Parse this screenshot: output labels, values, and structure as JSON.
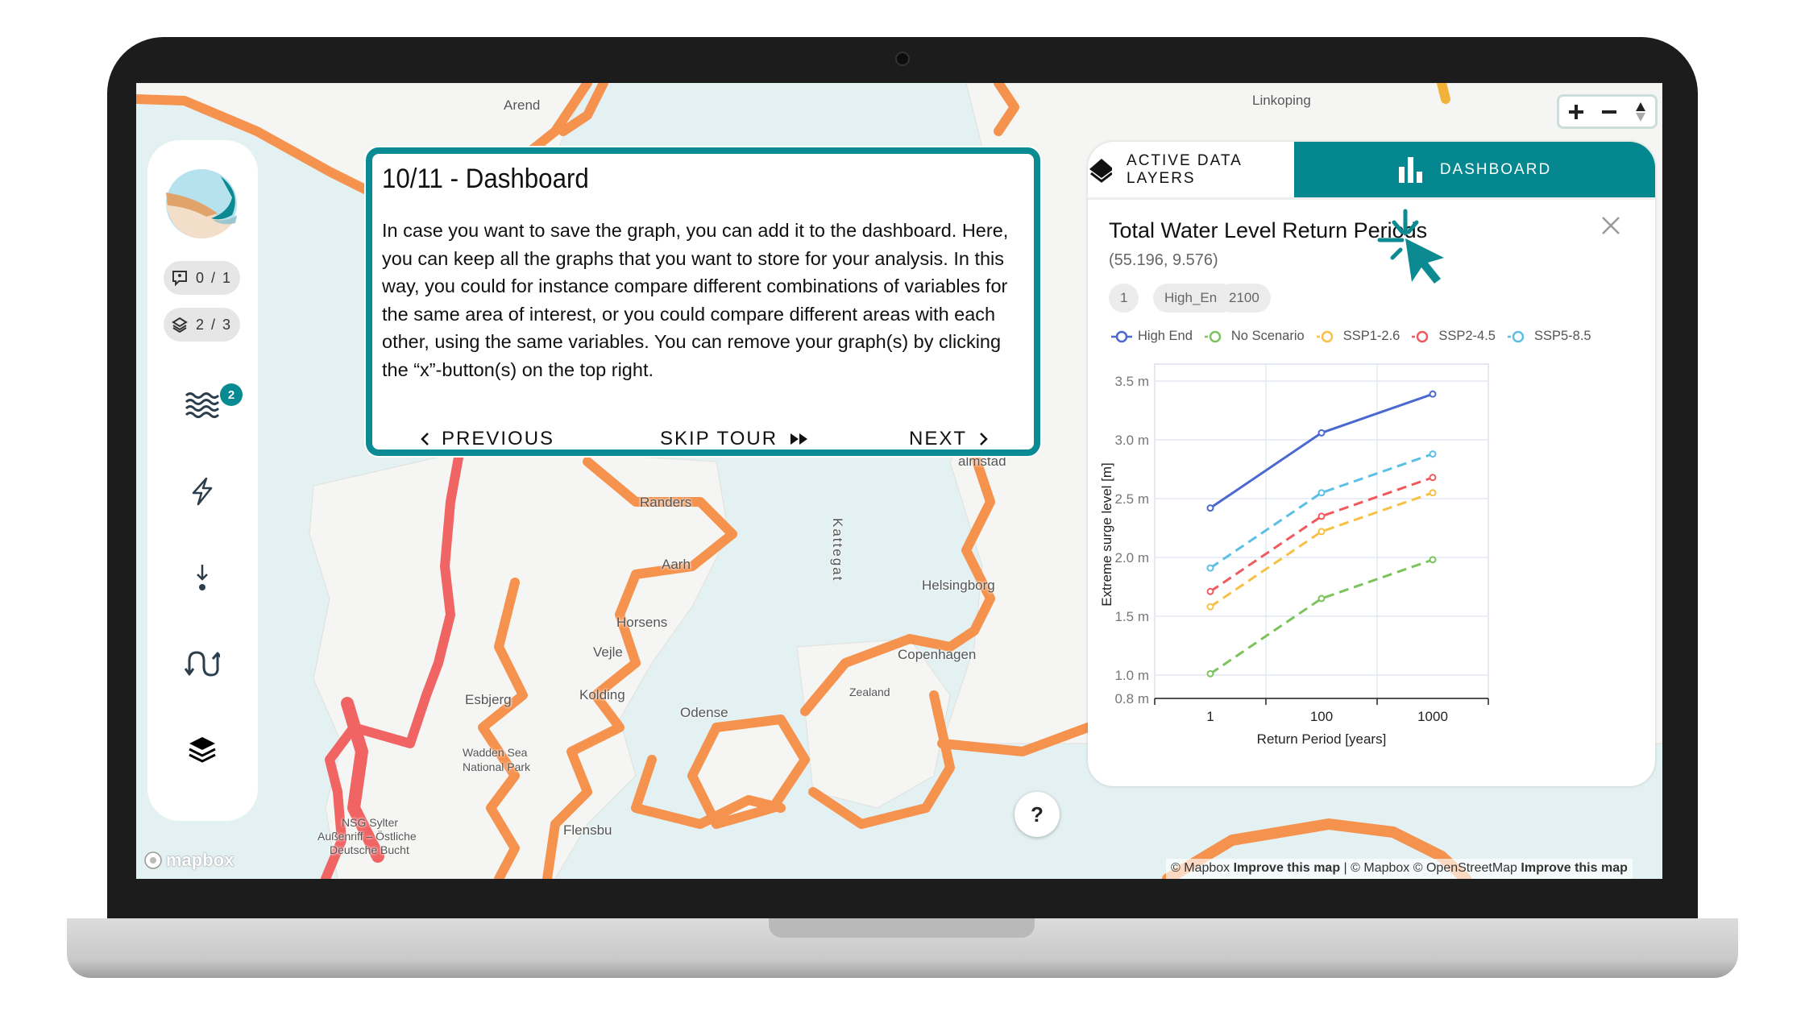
{
  "sidebar": {
    "comments_count": "0 / 1",
    "layers_count": "2 / 3",
    "waves_badge": "2",
    "icons": [
      "logo",
      "comment-icon",
      "layers-outline-icon",
      "waves-icon",
      "lightning-icon",
      "arrow-down-point-icon",
      "wave-arrows-icon",
      "layers-icon"
    ]
  },
  "tour": {
    "title": "10/11 - Dashboard",
    "body": "In case you want to save the graph, you can add it to the dashboard. Here, you can keep all the graphs that you want to store for your analysis. In this way, you could for instance compare different combinations of variables for the same area of interest, or you could compare different areas with each other, using the same variables. You can remove your graph(s) by clicking the “x”-button(s) on the top right.",
    "previous": "PREVIOUS",
    "skip": "SKIP TOUR",
    "next": "NEXT"
  },
  "panel": {
    "tabs": [
      {
        "label": "ACTIVE DATA LAYERS",
        "active": false
      },
      {
        "label": "DASHBOARD",
        "active": true
      }
    ],
    "card_title": "Total Water Level Return Periods",
    "coords": "(55.196, 9.576)",
    "chips": [
      "1",
      "High_End",
      "2100"
    ]
  },
  "map": {
    "labels": [
      "Arend",
      "Linkoping",
      "Randers",
      "Aarh",
      "Horsens",
      "Vejle",
      "Kolding",
      "Esbjerg",
      "Odense",
      "Copenhagen",
      "Zealand",
      "Helsingborg",
      "almstad",
      "Kattegat",
      "Wadden Sea",
      "National Park",
      "NSG Sylter",
      "Außenriff – Östliche",
      "Deutsche Bucht",
      "Flensbu"
    ],
    "attribution": {
      "a": "© Mapbox",
      "b": "Improve this map",
      "c": "| © Mapbox © OpenStreetMap",
      "d": "Improve this map"
    },
    "logo": "mapbox",
    "help": "?",
    "colors": {
      "water": "#e3f1f3",
      "land": "#f5f5f3",
      "coast_orange": "#f5924e",
      "coast_red": "#f06464"
    }
  },
  "colors": {
    "accent": "#05878f"
  },
  "chart_data": {
    "type": "line",
    "categories": [
      "1",
      "100",
      "1000"
    ],
    "xlabel": "Return Period [years]",
    "ylabel": "Extreme surge level [m]",
    "ylim": [
      0.8,
      3.59
    ],
    "yticks": [
      0.8,
      1.0,
      1.5,
      2.0,
      2.5,
      3.0,
      3.5
    ],
    "ytick_labels": [
      "0.8 m",
      "1.0 m",
      "1.5 m",
      "2.0 m",
      "2.5 m",
      "3.0 m",
      "3.5 m"
    ],
    "grid": true,
    "legend": "top",
    "series": [
      {
        "name": "High End",
        "values": [
          2.42,
          3.06,
          3.39
        ],
        "color": "#4a68cf",
        "dash": false
      },
      {
        "name": "No Scenario",
        "values": [
          1.01,
          1.65,
          1.98
        ],
        "color": "#7cc35d",
        "dash": true
      },
      {
        "name": "SSP1-2.6",
        "values": [
          1.58,
          2.22,
          2.55
        ],
        "color": "#f6c145",
        "dash": true
      },
      {
        "name": "SSP2-4.5",
        "values": [
          1.71,
          2.35,
          2.68
        ],
        "color": "#ee5a5e",
        "dash": true
      },
      {
        "name": "SSP5-8.5",
        "values": [
          1.91,
          2.55,
          2.88
        ],
        "color": "#5cbfe4",
        "dash": true
      }
    ]
  }
}
